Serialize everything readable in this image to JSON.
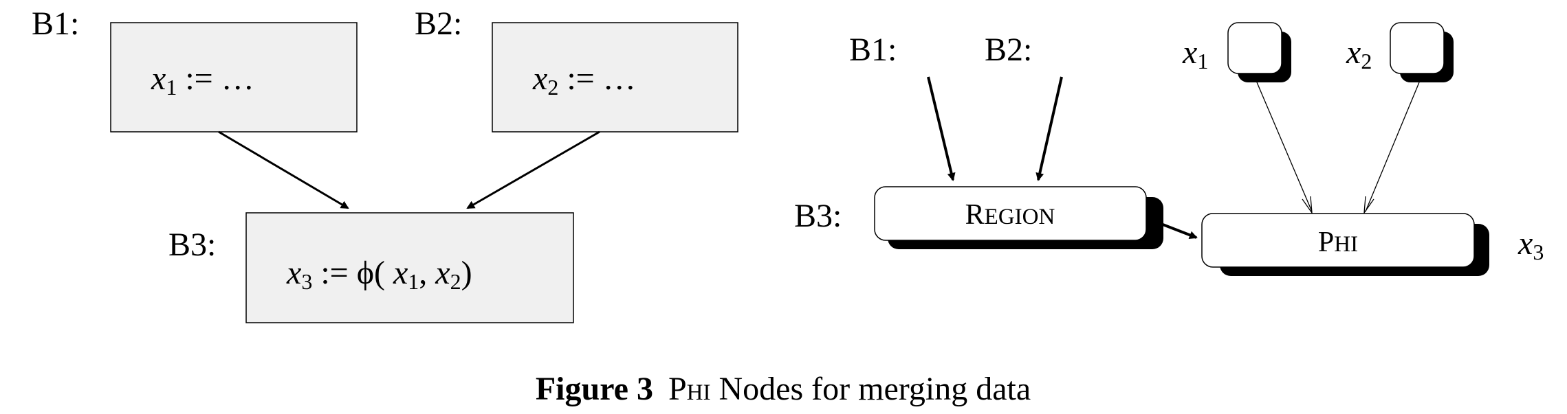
{
  "cfg": {
    "b1_label": "B1:",
    "b2_label": "B2:",
    "b3_label": "B3:",
    "b1_var": "x",
    "b1_sub": "1",
    "b1_rest": ":= …",
    "b2_var": "x",
    "b2_sub": "2",
    "b2_rest": ":= …",
    "b3_var": "x",
    "b3_sub": "3",
    "b3_assign": ":= ",
    "phi_symbol": "ϕ",
    "b3_open": "(",
    "b3_arg1_var": "x",
    "b3_arg1_sub": "1",
    "b3_comma": ",",
    "b3_arg2_var": "x",
    "b3_arg2_sub": "2",
    "b3_close": ")"
  },
  "graph": {
    "b1_label": "B1:",
    "b2_label": "B2:",
    "b3_label": "B3:",
    "x1_var": "x",
    "x1_sub": "1",
    "x2_var": "x",
    "x2_sub": "2",
    "x3_var": "x",
    "x3_sub": "3",
    "region_initial": "R",
    "region_rest": "EGION",
    "phi_initial": "P",
    "phi_rest": "HI"
  },
  "caption": {
    "label": "Figure 3",
    "phi_initial": "P",
    "phi_rest": "HI",
    "rest": " Nodes for merging data"
  },
  "colors": {
    "block_fill": "#f0f0f0",
    "stroke": "#000000",
    "node_fill": "#ffffff",
    "shadow": "#000000"
  }
}
